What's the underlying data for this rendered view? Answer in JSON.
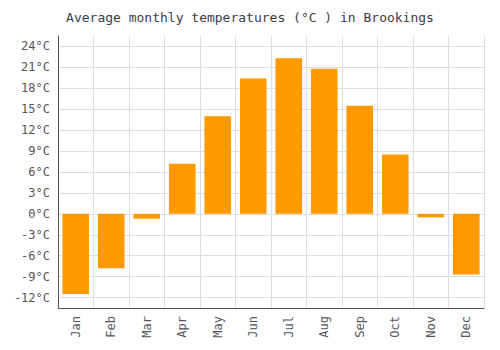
{
  "chart_data": {
    "type": "bar",
    "title": "Average monthly temperatures (°C ) in Brookings",
    "categories": [
      "Jan",
      "Feb",
      "Mar",
      "Apr",
      "May",
      "Jun",
      "Jul",
      "Aug",
      "Sep",
      "Oct",
      "Nov",
      "Dec"
    ],
    "values": [
      -11.5,
      -7.8,
      -0.7,
      7.2,
      14.0,
      19.4,
      22.3,
      20.8,
      15.5,
      8.5,
      -0.5,
      -8.7
    ],
    "color": "#FF9900",
    "ylim": [
      -13.5,
      25.5
    ],
    "yticks": [
      {
        "value": -12,
        "label": "-12°C"
      },
      {
        "value": -9,
        "label": "-9°C"
      },
      {
        "value": -6,
        "label": "-6°C"
      },
      {
        "value": -3,
        "label": "-3°C"
      },
      {
        "value": 0,
        "label": "0°C"
      },
      {
        "value": 3,
        "label": "3°C"
      },
      {
        "value": 6,
        "label": "6°C"
      },
      {
        "value": 9,
        "label": "9°C"
      },
      {
        "value": 12,
        "label": "12°C"
      },
      {
        "value": 15,
        "label": "15°C"
      },
      {
        "value": 18,
        "label": "18°C"
      },
      {
        "value": 21,
        "label": "21°C"
      },
      {
        "value": 24,
        "label": "24°C"
      }
    ],
    "grid": true
  }
}
